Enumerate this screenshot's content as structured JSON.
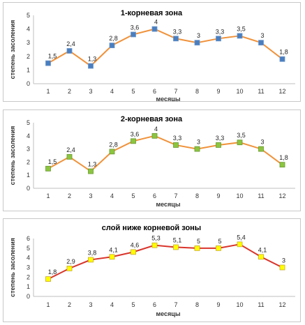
{
  "chart_data": [
    {
      "type": "line",
      "title": "1-корневая зона",
      "xlabel": "месяцы",
      "ylabel": "степень засоления",
      "categories": [
        "1",
        "2",
        "3",
        "4",
        "5",
        "6",
        "7",
        "8",
        "9",
        "10",
        "11",
        "12"
      ],
      "values": [
        1.5,
        2.4,
        1.3,
        2.8,
        3.6,
        4,
        3.3,
        3,
        3.3,
        3.5,
        3,
        1.8
      ],
      "data_labels": [
        "1,5",
        "2,4",
        "1,3",
        "2,8",
        "3,6",
        "4",
        "3,3",
        "3",
        "3,3",
        "3,5",
        "3",
        "1,8"
      ],
      "y_ticks": [
        "0",
        "1",
        "2",
        "3",
        "4",
        "5"
      ],
      "ylim": [
        0,
        5
      ],
      "grid": false,
      "legend": "none",
      "colors": {
        "line": "#f0923a",
        "marker": "#4a7ebf",
        "marker_border": "#6a96cc"
      }
    },
    {
      "type": "line",
      "title": "2-корневая зона",
      "xlabel": "месяцы",
      "ylabel": "степень засоления",
      "categories": [
        "1",
        "2",
        "3",
        "4",
        "5",
        "6",
        "7",
        "8",
        "9",
        "10",
        "11",
        "12"
      ],
      "values": [
        1.5,
        2.4,
        1.3,
        2.8,
        3.6,
        4,
        3.3,
        3,
        3.3,
        3.5,
        3,
        1.8
      ],
      "data_labels": [
        "1,5",
        "2,4",
        "1,3",
        "2,8",
        "3,6",
        "4",
        "3,3",
        "3",
        "3,3",
        "3,5",
        "3",
        "1,8"
      ],
      "y_ticks": [
        "0",
        "1",
        "2",
        "3",
        "4",
        "5"
      ],
      "ylim": [
        0,
        5
      ],
      "grid": false,
      "legend": "none",
      "colors": {
        "line": "#f0923a",
        "marker": "#8cc540",
        "marker_border": "#6a9a30"
      }
    },
    {
      "type": "line",
      "title": "слой ниже корневой зоны",
      "xlabel": "месяцы",
      "ylabel": "степень засоления",
      "categories": [
        "1",
        "2",
        "3",
        "4",
        "5",
        "6",
        "7",
        "8",
        "9",
        "10",
        "11",
        "12"
      ],
      "values": [
        1.8,
        2.9,
        3.8,
        4.1,
        4.6,
        5.3,
        5.1,
        5,
        5,
        5.4,
        4.1,
        3
      ],
      "data_labels": [
        "1,8",
        "2,9",
        "3,8",
        "4,1",
        "4,6",
        "5,3",
        "5,1",
        "5",
        "5",
        "5,4",
        "4,1",
        "3"
      ],
      "y_ticks": [
        "0",
        "1",
        "2",
        "3",
        "4",
        "5",
        "6"
      ],
      "ylim": [
        0,
        6
      ],
      "grid": false,
      "legend": "none",
      "colors": {
        "line": "#d9342b",
        "marker": "#ffff00",
        "marker_border": "#c9a830"
      }
    }
  ]
}
